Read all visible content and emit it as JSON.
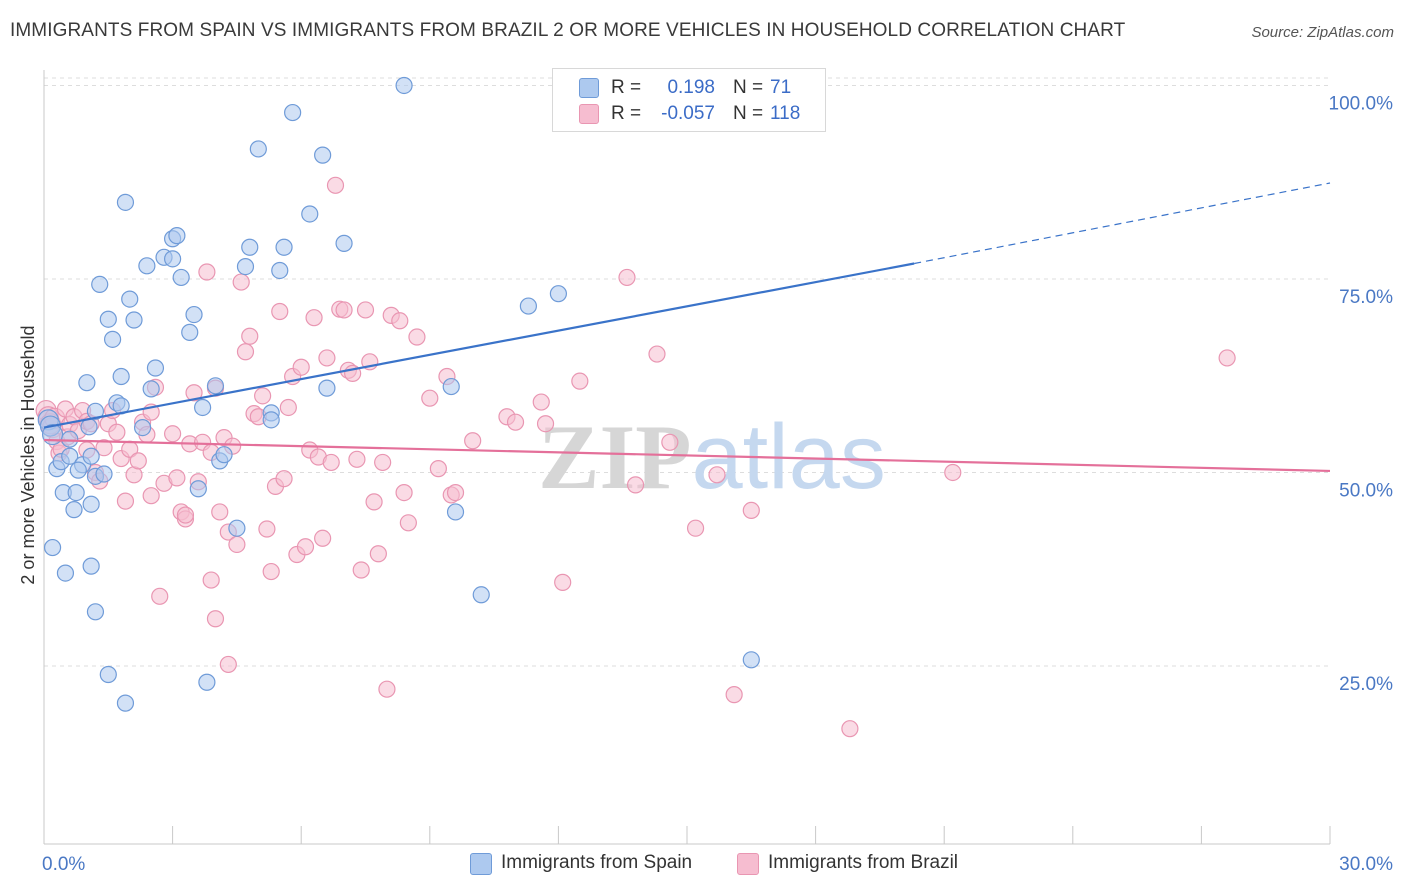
{
  "title": "IMMIGRANTS FROM SPAIN VS IMMIGRANTS FROM BRAZIL 2 OR MORE VEHICLES IN HOUSEHOLD CORRELATION CHART",
  "source": "Source: ZipAtlas.com",
  "watermark": "ZIPatlas",
  "legend": {
    "r_label": "R =",
    "n_label": "N =",
    "spain": {
      "r": "0.198",
      "n": "71"
    },
    "brazil": {
      "r": "-0.057",
      "n": "118"
    }
  },
  "bottom_legend": {
    "spain": "Immigrants from Spain",
    "brazil": "Immigrants from Brazil"
  },
  "colors": {
    "spain_fill": "#adc9ef",
    "spain_stroke": "#6f9bd8",
    "spain_line": "#3a73c9",
    "brazil_fill": "#f6bdd0",
    "brazil_stroke": "#e996b2",
    "brazil_line": "#e4709a",
    "tick_text": "#4a78c4",
    "grid": "#dddddd"
  },
  "chart_data": {
    "type": "scatter",
    "title": "IMMIGRANTS FROM SPAIN VS IMMIGRANTS FROM BRAZIL 2 OR MORE VEHICLES IN HOUSEHOLD CORRELATION CHART",
    "xlabel": "",
    "ylabel": "2 or more Vehicles in Household",
    "xlim": [
      0,
      30
    ],
    "ylim": [
      2,
      102
    ],
    "x_tick_labels": [
      "0.0%",
      "30.0%"
    ],
    "y_ticks": [
      {
        "value": 25,
        "label": "25.0%"
      },
      {
        "value": 50,
        "label": "50.0%"
      },
      {
        "value": 75,
        "label": "75.0%"
      },
      {
        "value": 100,
        "label": "100.0%"
      }
    ],
    "series": [
      {
        "name": "Immigrants from Spain",
        "r": 0.198,
        "n": 71,
        "trend": {
          "x0": 0,
          "y0": 55.8,
          "x1": 20.3,
          "y1": 77.0,
          "x_dash_end": 30,
          "y_dash_end": 87.4
        },
        "points": [
          [
            0.1,
            56.8
          ],
          [
            0.15,
            56.0
          ],
          [
            0.2,
            54.9
          ],
          [
            0.2,
            40.3
          ],
          [
            0.3,
            50.5
          ],
          [
            0.4,
            51.4
          ],
          [
            0.45,
            47.4
          ],
          [
            0.5,
            37.0
          ],
          [
            0.6,
            52.1
          ],
          [
            0.7,
            45.2
          ],
          [
            0.75,
            47.4
          ],
          [
            0.9,
            51.0
          ],
          [
            1.0,
            61.6
          ],
          [
            1.05,
            55.9
          ],
          [
            1.1,
            52.1
          ],
          [
            1.2,
            57.9
          ],
          [
            1.1,
            37.9
          ],
          [
            1.2,
            49.5
          ],
          [
            1.1,
            45.9
          ],
          [
            1.3,
            74.3
          ],
          [
            1.5,
            69.8
          ],
          [
            1.6,
            67.2
          ],
          [
            1.7,
            59.0
          ],
          [
            1.8,
            62.4
          ],
          [
            1.8,
            58.6
          ],
          [
            1.9,
            84.9
          ],
          [
            2.0,
            72.4
          ],
          [
            2.1,
            69.7
          ],
          [
            2.3,
            55.8
          ],
          [
            2.4,
            76.7
          ],
          [
            2.5,
            60.8
          ],
          [
            2.6,
            63.5
          ],
          [
            2.8,
            77.8
          ],
          [
            3.0,
            77.6
          ],
          [
            3.0,
            80.2
          ],
          [
            3.1,
            80.6
          ],
          [
            3.2,
            75.2
          ],
          [
            3.4,
            68.1
          ],
          [
            3.5,
            70.4
          ],
          [
            3.7,
            58.4
          ],
          [
            3.6,
            47.9
          ],
          [
            4.0,
            61.2
          ],
          [
            4.1,
            51.5
          ],
          [
            4.2,
            52.3
          ],
          [
            4.5,
            42.8
          ],
          [
            4.7,
            76.6
          ],
          [
            4.8,
            79.1
          ],
          [
            5.0,
            91.8
          ],
          [
            5.3,
            57.7
          ],
          [
            5.3,
            56.8
          ],
          [
            5.5,
            76.1
          ],
          [
            5.6,
            79.1
          ],
          [
            5.8,
            96.5
          ],
          [
            6.2,
            83.4
          ],
          [
            6.5,
            91.0
          ],
          [
            6.6,
            60.9
          ],
          [
            7.0,
            79.6
          ],
          [
            8.4,
            100.0
          ],
          [
            9.5,
            61.1
          ],
          [
            9.6,
            44.9
          ],
          [
            10.2,
            34.2
          ],
          [
            11.3,
            71.5
          ],
          [
            12.0,
            73.1
          ],
          [
            16.5,
            25.8
          ],
          [
            1.2,
            32.0
          ],
          [
            1.5,
            23.9
          ],
          [
            1.9,
            20.2
          ],
          [
            3.8,
            22.9
          ],
          [
            1.4,
            49.8
          ],
          [
            0.6,
            54.3
          ],
          [
            0.8,
            50.3
          ]
        ]
      },
      {
        "name": "Immigrants from Brazil",
        "r": -0.057,
        "n": 118,
        "trend": {
          "x0": 0,
          "y0": 54.2,
          "x1": 30,
          "y1": 50.2
        },
        "points": [
          [
            0.05,
            58.0
          ],
          [
            0.1,
            57.2
          ],
          [
            0.15,
            56.3
          ],
          [
            0.2,
            55.8
          ],
          [
            0.25,
            57.0
          ],
          [
            0.3,
            54.0
          ],
          [
            0.35,
            52.5
          ],
          [
            0.4,
            53.0
          ],
          [
            0.5,
            58.2
          ],
          [
            0.55,
            54.6
          ],
          [
            0.6,
            56.2
          ],
          [
            0.7,
            57.2
          ],
          [
            0.8,
            55.4
          ],
          [
            0.9,
            58.0
          ],
          [
            1.0,
            56.6
          ],
          [
            1.0,
            52.9
          ],
          [
            1.1,
            56.3
          ],
          [
            1.2,
            50.0
          ],
          [
            1.3,
            48.9
          ],
          [
            1.4,
            53.2
          ],
          [
            1.5,
            56.3
          ],
          [
            1.6,
            58.0
          ],
          [
            1.7,
            55.2
          ],
          [
            1.8,
            51.8
          ],
          [
            2.0,
            53.0
          ],
          [
            2.1,
            49.7
          ],
          [
            2.2,
            51.5
          ],
          [
            2.3,
            56.5
          ],
          [
            2.4,
            54.9
          ],
          [
            2.5,
            57.8
          ],
          [
            2.6,
            61.0
          ],
          [
            2.8,
            48.6
          ],
          [
            3.0,
            55.0
          ],
          [
            3.1,
            49.3
          ],
          [
            3.2,
            44.9
          ],
          [
            3.3,
            44.0
          ],
          [
            3.4,
            53.7
          ],
          [
            3.5,
            60.3
          ],
          [
            3.6,
            48.8
          ],
          [
            3.7,
            53.9
          ],
          [
            3.8,
            75.9
          ],
          [
            3.9,
            52.6
          ],
          [
            4.0,
            60.9
          ],
          [
            4.1,
            44.9
          ],
          [
            4.2,
            54.5
          ],
          [
            4.3,
            42.3
          ],
          [
            4.4,
            53.4
          ],
          [
            4.5,
            40.7
          ],
          [
            4.6,
            74.6
          ],
          [
            4.7,
            65.6
          ],
          [
            4.8,
            67.6
          ],
          [
            4.9,
            57.6
          ],
          [
            5.0,
            57.2
          ],
          [
            5.1,
            59.9
          ],
          [
            5.2,
            42.7
          ],
          [
            5.3,
            37.2
          ],
          [
            5.4,
            48.2
          ],
          [
            5.5,
            70.8
          ],
          [
            5.6,
            49.2
          ],
          [
            5.7,
            58.4
          ],
          [
            5.8,
            62.4
          ],
          [
            5.9,
            39.4
          ],
          [
            6.0,
            63.6
          ],
          [
            6.1,
            40.4
          ],
          [
            6.2,
            52.9
          ],
          [
            6.3,
            70.0
          ],
          [
            6.4,
            52.0
          ],
          [
            6.5,
            41.5
          ],
          [
            6.6,
            64.8
          ],
          [
            6.7,
            51.3
          ],
          [
            6.9,
            71.1
          ],
          [
            7.0,
            71.0
          ],
          [
            7.1,
            63.2
          ],
          [
            7.2,
            62.8
          ],
          [
            7.3,
            51.7
          ],
          [
            7.4,
            37.4
          ],
          [
            7.5,
            71.0
          ],
          [
            7.6,
            64.3
          ],
          [
            7.7,
            46.2
          ],
          [
            7.8,
            39.5
          ],
          [
            7.9,
            51.3
          ],
          [
            8.1,
            70.3
          ],
          [
            8.3,
            69.6
          ],
          [
            8.4,
            47.4
          ],
          [
            8.5,
            43.5
          ],
          [
            8.7,
            67.5
          ],
          [
            9.0,
            59.6
          ],
          [
            9.2,
            50.5
          ],
          [
            9.4,
            62.4
          ],
          [
            9.5,
            47.1
          ],
          [
            9.6,
            47.4
          ],
          [
            10.0,
            54.1
          ],
          [
            10.8,
            57.2
          ],
          [
            11.0,
            56.5
          ],
          [
            11.6,
            59.1
          ],
          [
            11.7,
            56.3
          ],
          [
            12.1,
            35.8
          ],
          [
            12.5,
            61.8
          ],
          [
            13.6,
            75.2
          ],
          [
            13.8,
            48.4
          ],
          [
            14.3,
            65.3
          ],
          [
            14.6,
            53.9
          ],
          [
            15.2,
            42.8
          ],
          [
            15.7,
            49.7
          ],
          [
            16.1,
            21.3
          ],
          [
            16.5,
            45.1
          ],
          [
            18.8,
            16.9
          ],
          [
            21.2,
            50.0
          ],
          [
            27.6,
            64.8
          ],
          [
            6.8,
            87.1
          ],
          [
            3.9,
            36.1
          ],
          [
            4.0,
            31.1
          ],
          [
            4.3,
            25.2
          ],
          [
            8.0,
            22.0
          ],
          [
            2.7,
            34.0
          ],
          [
            1.9,
            46.3
          ],
          [
            2.5,
            47.0
          ],
          [
            3.3,
            44.5
          ]
        ]
      }
    ]
  }
}
